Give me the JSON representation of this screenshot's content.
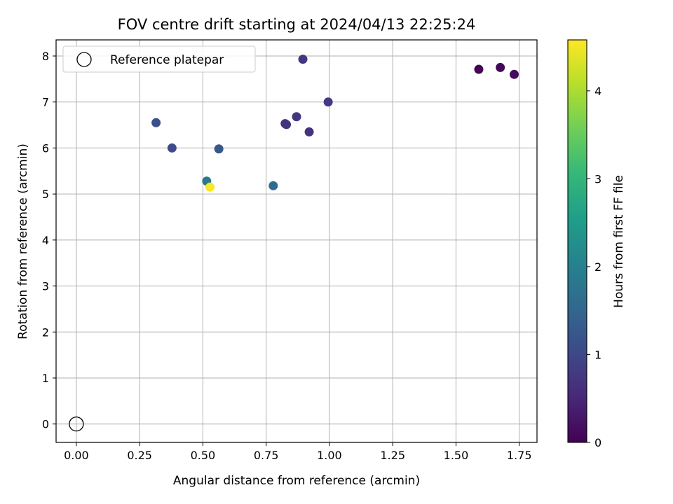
{
  "chart_data": {
    "type": "scatter",
    "title": "FOV centre drift starting at 2024/04/13 22:25:24",
    "xlabel": "Angular distance from reference (arcmin)",
    "ylabel": "Rotation from reference (arcmin)",
    "xlim": [
      -0.08,
      1.82
    ],
    "ylim": [
      -0.4,
      8.35
    ],
    "xticks": [
      0.0,
      0.25,
      0.5,
      0.75,
      1.0,
      1.25,
      1.5,
      1.75
    ],
    "xtick_labels": [
      "0.00",
      "0.25",
      "0.50",
      "0.75",
      "1.00",
      "1.25",
      "1.50",
      "1.75"
    ],
    "yticks": [
      0,
      1,
      2,
      3,
      4,
      5,
      6,
      7,
      8
    ],
    "ytick_labels": [
      "0",
      "1",
      "2",
      "3",
      "4",
      "5",
      "6",
      "7",
      "8"
    ],
    "grid": true,
    "legend": {
      "placement": "upper-left",
      "entries": [
        "Reference platepar"
      ]
    },
    "reference_point": {
      "x": 0.0,
      "y": 0.0,
      "label": "Reference platepar"
    },
    "points": [
      {
        "x": 1.59,
        "y": 7.71,
        "hours": 0.02
      },
      {
        "x": 1.675,
        "y": 7.75,
        "hours": 0.08
      },
      {
        "x": 1.73,
        "y": 7.6,
        "hours": 0.13
      },
      {
        "x": 0.895,
        "y": 7.93,
        "hours": 0.72
      },
      {
        "x": 0.995,
        "y": 7.0,
        "hours": 0.78
      },
      {
        "x": 0.87,
        "y": 6.68,
        "hours": 0.74
      },
      {
        "x": 0.825,
        "y": 6.53,
        "hours": 0.66
      },
      {
        "x": 0.83,
        "y": 6.51,
        "hours": 0.7
      },
      {
        "x": 0.92,
        "y": 6.35,
        "hours": 0.68
      },
      {
        "x": 0.315,
        "y": 6.55,
        "hours": 1.12
      },
      {
        "x": 0.378,
        "y": 6.0,
        "hours": 1.05
      },
      {
        "x": 0.563,
        "y": 5.98,
        "hours": 1.25
      },
      {
        "x": 0.778,
        "y": 5.18,
        "hours": 1.6
      },
      {
        "x": 0.515,
        "y": 5.28,
        "hours": 1.85
      },
      {
        "x": 0.528,
        "y": 5.15,
        "hours": 4.55
      }
    ],
    "colorbar": {
      "label": "Hours from first FF file",
      "colormap": "viridis",
      "range": [
        0,
        4.58
      ],
      "ticks": [
        0,
        1,
        2,
        3,
        4
      ],
      "tick_labels": [
        "0",
        "1",
        "2",
        "3",
        "4"
      ],
      "colors": [
        "#440154",
        "#482878",
        "#3e4989",
        "#31688e",
        "#26828e",
        "#1f9e89",
        "#35b779",
        "#6ece58",
        "#b5de2b",
        "#fde725"
      ]
    }
  }
}
